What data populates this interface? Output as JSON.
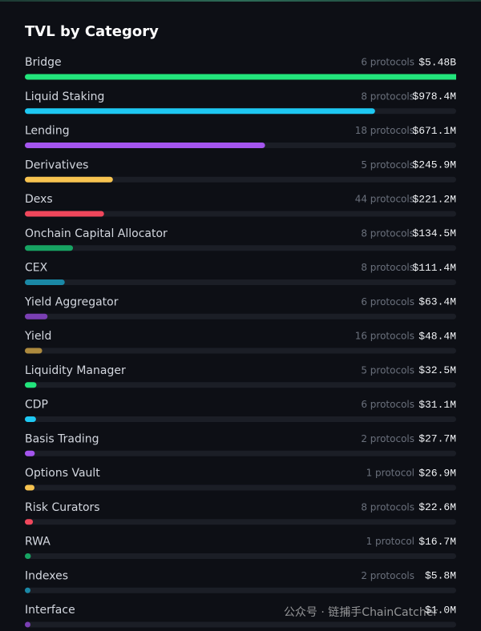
{
  "chart_data": {
    "type": "bar",
    "orientation": "horizontal",
    "title": "TVL by Category",
    "categories": [
      "Bridge",
      "Liquid Staking",
      "Lending",
      "Derivatives",
      "Dexs",
      "Onchain Capital Allocator",
      "CEX",
      "Yield Aggregator",
      "Yield",
      "Liquidity Manager",
      "CDP",
      "Basis Trading",
      "Options Vault",
      "Risk Curators",
      "RWA",
      "Indexes",
      "Interface"
    ],
    "values": [
      5480,
      978.4,
      671.1,
      245.9,
      221.2,
      134.5,
      111.4,
      63.4,
      48.4,
      32.5,
      31.1,
      27.7,
      26.9,
      22.6,
      16.7,
      5.8,
      1.0
    ],
    "value_labels": [
      "$5.48B",
      "$978.4M",
      "$671.1M",
      "$245.9M",
      "$221.2M",
      "$134.5M",
      "$111.4M",
      "$63.4M",
      "$48.4M",
      "$32.5M",
      "$31.1M",
      "$27.7M",
      "$26.9M",
      "$22.6M",
      "$16.7M",
      "$5.8M",
      "$1.0M"
    ],
    "protocols": [
      "6 protocols",
      "8 protocols",
      "18 protocols",
      "5 protocols",
      "44 protocols",
      "8 protocols",
      "8 protocols",
      "6 protocols",
      "16 protocols",
      "5 protocols",
      "6 protocols",
      "2 protocols",
      "1 protocol",
      "8 protocols",
      "1 protocol",
      "2 protocols",
      null
    ],
    "colors": [
      "#22e57c",
      "#1ec8f2",
      "#a455ee",
      "#f7c350",
      "#f0475c",
      "#17a463",
      "#1a88a6",
      "#7a3fb3",
      "#ad8a3e",
      "#22e57c",
      "#1ec8f2",
      "#a455ee",
      "#f7c350",
      "#f0475c",
      "#17a463",
      "#1a88a6",
      "#7a3fb3"
    ],
    "xlim": [
      0,
      1205
    ],
    "watermark": "公众号 · 链捕手ChainCatcher"
  }
}
